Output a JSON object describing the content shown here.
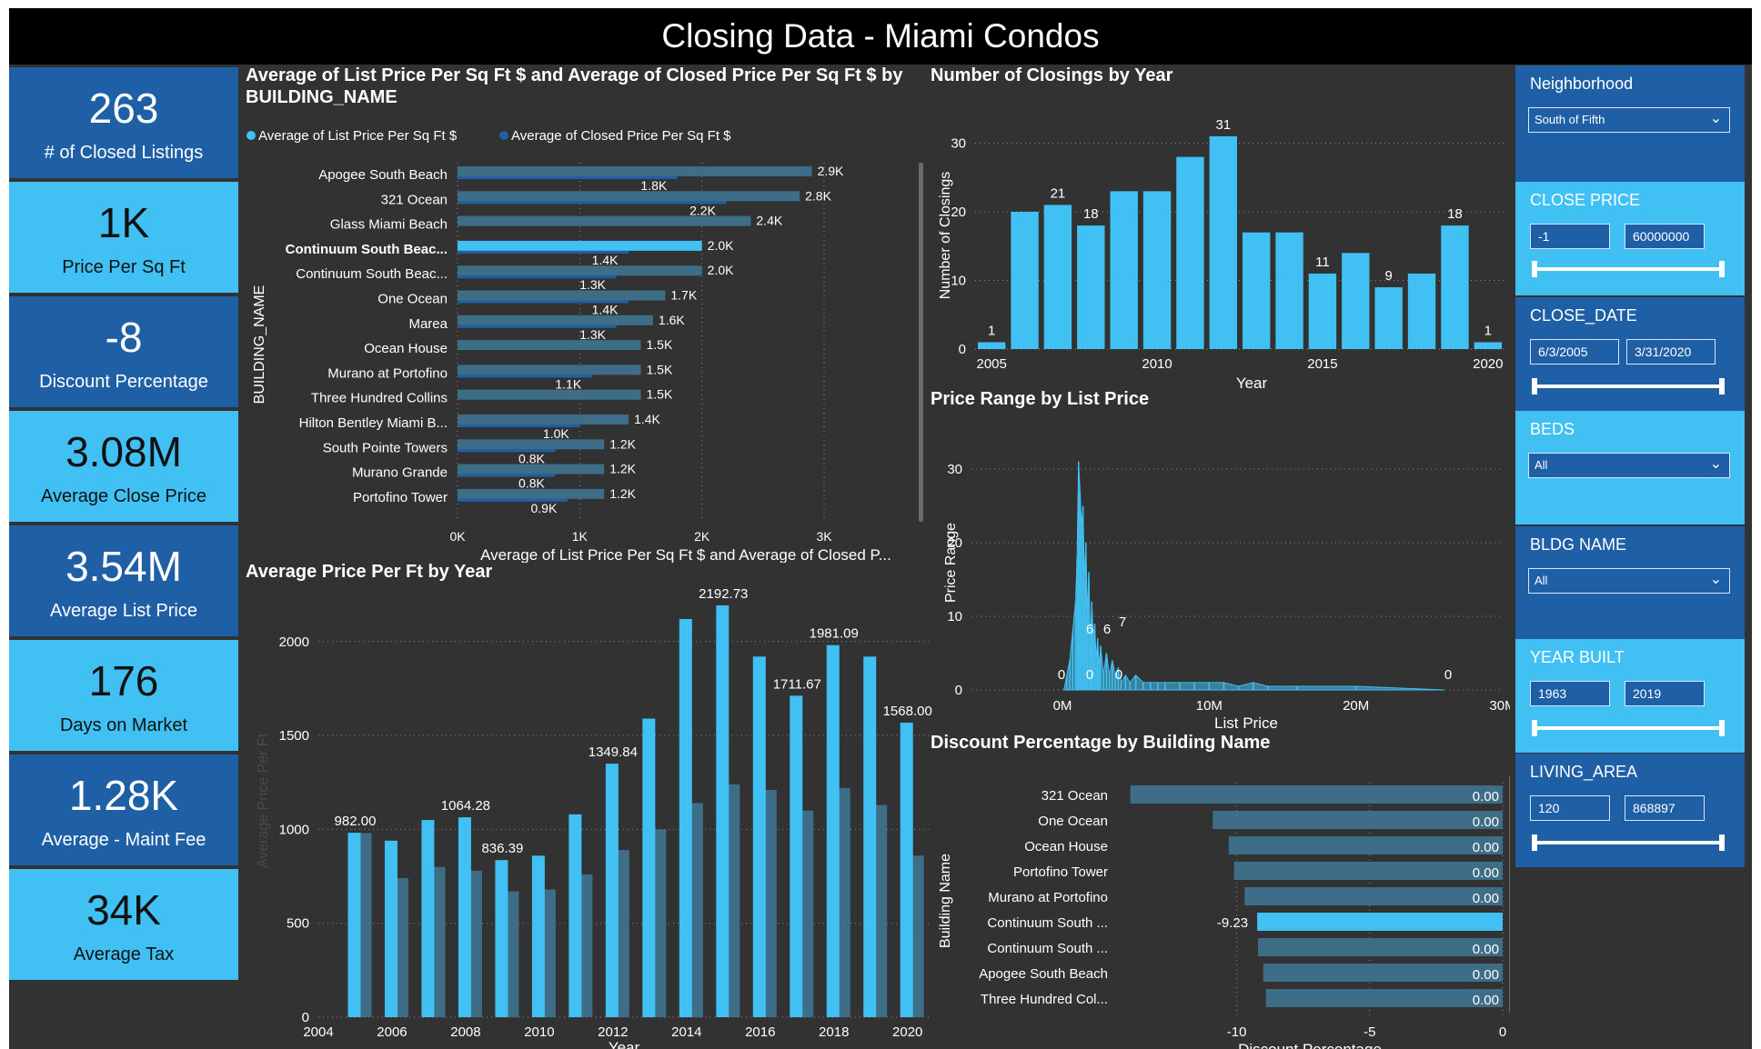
{
  "title": "Closing Data - Miami Condos",
  "kpis": [
    {
      "value": "263",
      "label": "# of Closed Listings"
    },
    {
      "value": "1K",
      "label": "Price Per Sq Ft"
    },
    {
      "value": "-8",
      "label": "Discount Percentage"
    },
    {
      "value": "3.08M",
      "label": "Average Close Price"
    },
    {
      "value": "3.54M",
      "label": "Average List Price"
    },
    {
      "value": "176",
      "label": "Days on Market"
    },
    {
      "value": "1.28K",
      "label": "Average - Maint Fee"
    },
    {
      "value": "34K",
      "label": "Average Tax"
    }
  ],
  "visuals": {
    "bars_title_line1": "Average of List Price Per Sq Ft $ and Average of Closed Price Per Sq Ft $ by",
    "bars_title_line2": "BUILDING_NAME",
    "closings_title": "Number of Closings by Year",
    "range_title": "Price Range by List Price",
    "avgyear_title": "Average Price Per Ft by Year",
    "discount_title": "Discount Percentage by Building Name"
  },
  "slicers": {
    "neighborhood": {
      "title": "Neighborhood",
      "value": "South of Fifth"
    },
    "close_price": {
      "title": "CLOSE PRICE",
      "min": "-1",
      "max": "60000000"
    },
    "close_date": {
      "title": "CLOSE_DATE",
      "min": "6/3/2005",
      "max": "3/31/2020"
    },
    "beds": {
      "title": "BEDS",
      "value": "All"
    },
    "bldg_name": {
      "title": "BLDG NAME",
      "value": "All"
    },
    "year_built": {
      "title": "YEAR BUILT",
      "min": "1963",
      "max": "2019"
    },
    "living_area": {
      "title": "LIVING_AREA",
      "min": "120",
      "max": "868897"
    }
  },
  "colors": {
    "light": "#41c1f3",
    "dark": "#1f5fa6",
    "muted": "#3e6d87",
    "bg": "#323232"
  },
  "chart_data": [
    {
      "type": "bar",
      "orientation": "horizontal",
      "title": "Average of List Price Per Sq Ft $ and Average of Closed Price Per Sq Ft $ by BUILDING_NAME",
      "xlabel": "Average of List Price Per Sq Ft $ and Average of Closed P...",
      "ylabel": "BUILDING_NAME",
      "categories": [
        "Apogee South Beach",
        "321 Ocean",
        "Glass Miami Beach",
        "Continuum South Beac...",
        "Continuum South Beac...",
        "One Ocean",
        "Marea",
        "Ocean House",
        "Murano at Portofino",
        "Three Hundred Collins",
        "Hilton Bentley Miami B...",
        "South Pointe Towers",
        "Murano Grande",
        "Portofino Tower"
      ],
      "series": [
        {
          "name": "Average of List Price Per Sq Ft $",
          "values": [
            2.9,
            2.8,
            2.4,
            2.0,
            2.0,
            1.7,
            1.6,
            1.5,
            1.5,
            1.5,
            1.4,
            1.2,
            1.2,
            1.2
          ],
          "labels": [
            "2.9K",
            "2.8K",
            "2.4K",
            "2.0K",
            "2.0K",
            "1.7K",
            "1.6K",
            "1.5K",
            "1.5K",
            "1.5K",
            "1.4K",
            "1.2K",
            "1.2K",
            "1.2K"
          ]
        },
        {
          "name": "Average of Closed Price Per Sq Ft $",
          "values": [
            1.8,
            2.2,
            null,
            1.4,
            1.3,
            1.4,
            1.3,
            null,
            1.1,
            null,
            1.0,
            0.8,
            0.8,
            0.9
          ],
          "labels": [
            "1.8K",
            "2.2K",
            "",
            "1.4K",
            "1.3K",
            "1.4K",
            "1.3K",
            "",
            "1.1K",
            "",
            "1.0K",
            "0.8K",
            "0.8K",
            "0.9K"
          ]
        }
      ],
      "highlight_index": 3,
      "xlim": [
        0,
        3
      ],
      "xticks": [
        "0K",
        "1K",
        "2K",
        "3K"
      ],
      "grid": true,
      "legend": "top-left"
    },
    {
      "type": "bar",
      "title": "Number of Closings by Year",
      "xlabel": "Year",
      "ylabel": "Number of Closings",
      "categories": [
        2005,
        2006,
        2007,
        2008,
        2009,
        2010,
        2011,
        2012,
        2013,
        2014,
        2015,
        2016,
        2017,
        2018,
        2019,
        2020
      ],
      "values": [
        1,
        20,
        21,
        18,
        23,
        23,
        28,
        31,
        17,
        17,
        11,
        14,
        9,
        11,
        18,
        1
      ],
      "labels": [
        "1",
        "",
        "21",
        "18",
        "",
        "",
        "",
        "31",
        "",
        "",
        "11",
        "",
        "9",
        "",
        "18",
        "1"
      ],
      "ylim": [
        0,
        35
      ],
      "yticks": [
        0,
        10,
        20,
        30
      ],
      "xticks": [
        "2005",
        "2010",
        "2015",
        "2020"
      ],
      "grid": true
    },
    {
      "type": "area",
      "title": "Price Range by List Price",
      "xlabel": "List Price",
      "ylabel": "Price Range",
      "xlim": [
        0,
        30
      ],
      "ylim": [
        0,
        32
      ],
      "xticks": [
        "0M",
        "10M",
        "20M",
        "30M"
      ],
      "yticks": [
        0,
        10,
        20,
        30
      ],
      "x": [
        0.1,
        0.3,
        0.5,
        0.7,
        0.9,
        1.0,
        1.1,
        1.2,
        1.3,
        1.4,
        1.5,
        1.6,
        1.7,
        1.8,
        1.9,
        2.0,
        2.1,
        2.2,
        2.3,
        2.4,
        2.5,
        2.6,
        2.8,
        3.0,
        3.2,
        3.4,
        3.6,
        3.8,
        4.0,
        4.3,
        4.6,
        5.0,
        5.5,
        6.0,
        6.5,
        7.0,
        8.0,
        9.0,
        10.0,
        11.0,
        12.0,
        13.0,
        14.0,
        16.0,
        20.0,
        26.0
      ],
      "y": [
        0,
        2,
        4,
        8,
        12,
        18,
        31,
        27,
        22,
        25,
        15,
        20,
        10,
        16,
        6,
        12,
        7,
        9,
        4,
        7,
        3,
        6,
        2,
        5,
        2,
        4,
        2,
        3,
        1,
        2,
        1,
        2,
        1,
        1,
        1,
        1,
        1,
        1,
        1,
        1,
        0.5,
        1,
        0.5,
        0.5,
        0.5,
        0
      ],
      "annotations": [
        "0",
        "6",
        "6",
        "7",
        "0",
        "0",
        "0"
      ],
      "grid": true
    },
    {
      "type": "bar",
      "title": "Average Price Per Ft by Year",
      "xlabel": "Year",
      "ylabel": "Average Price Per Ft",
      "categories": [
        2005,
        2006,
        2007,
        2008,
        2009,
        2010,
        2011,
        2012,
        2013,
        2014,
        2015,
        2016,
        2017,
        2018,
        2019,
        2020
      ],
      "series": [
        {
          "name": "light",
          "values": [
            982,
            940,
            1050,
            1064.28,
            836.39,
            860,
            1080,
            1349.84,
            1590,
            2120,
            2192.73,
            1920,
            1711.67,
            1981.09,
            1920,
            1568.0
          ],
          "labels": [
            "982.00",
            "",
            "",
            "1064.28",
            "836.39",
            "",
            "",
            "1349.84",
            "",
            "",
            "2192.73",
            "",
            "1711.67",
            "1981.09",
            "",
            "1568.00"
          ]
        },
        {
          "name": "dark",
          "values": [
            980,
            740,
            800,
            780,
            670,
            680,
            760,
            890,
            1000,
            1140,
            1240,
            1210,
            1100,
            1220,
            1130,
            860
          ]
        }
      ],
      "ylim": [
        0,
        2250
      ],
      "yticks": [
        0,
        500,
        1000,
        1500,
        2000
      ],
      "xticks": [
        "2004",
        "2006",
        "2008",
        "2010",
        "2012",
        "2014",
        "2016",
        "2018",
        "2020"
      ],
      "grid": true
    },
    {
      "type": "bar",
      "orientation": "horizontal",
      "title": "Discount Percentage by Building Name",
      "xlabel": "Discount Percentage",
      "ylabel": "Building Name",
      "categories": [
        "321 Ocean",
        "One Ocean",
        "Ocean House",
        "Portofino Tower",
        "Murano at Portofino",
        "Continuum South ...",
        "Continuum South ...",
        "Apogee South Beach",
        "Three Hundred Col..."
      ],
      "values": [
        -14,
        -10.9,
        -10.3,
        -10.1,
        -9.7,
        -9.23,
        -9.2,
        -9.0,
        -8.9
      ],
      "labels": [
        "0.00",
        "0.00",
        "0.00",
        "0.00",
        "0.00",
        "-9.23",
        "0.00",
        "0.00",
        "0.00"
      ],
      "highlight_index": 5,
      "xlim": [
        -14.5,
        0
      ],
      "xticks": [
        "-10",
        "-5",
        "0"
      ],
      "grid": true
    }
  ]
}
